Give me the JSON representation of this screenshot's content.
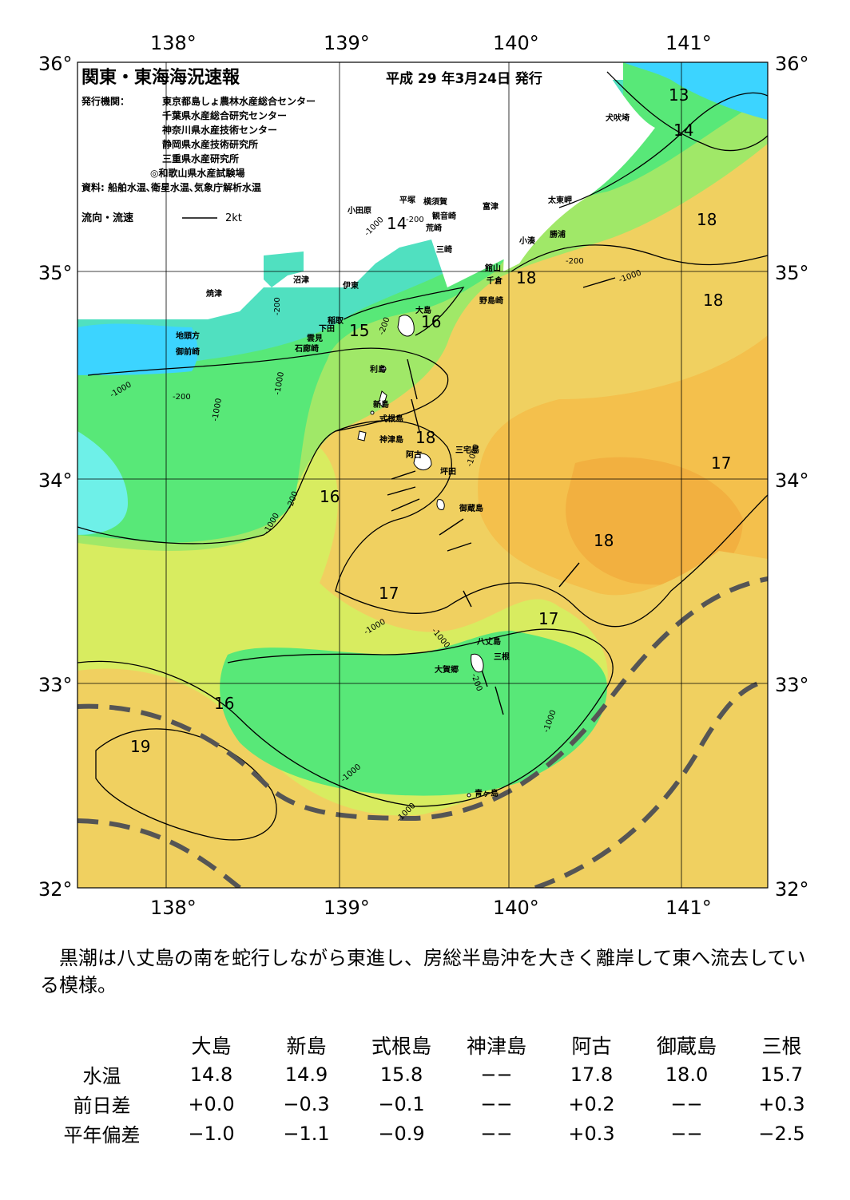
{
  "header": {
    "title": "関東・東海海況速報",
    "date": "平成 29 年3月24日 発行",
    "issuer_label": "発行機関：",
    "issuers": [
      "東京都島しょ農林水産総合センター",
      "千葉県水産総合研究センター",
      "神奈川県水産技術センター",
      "静岡県水産技術研究所",
      "三重県水産研究所",
      "◎和歌山県水産試験場"
    ],
    "sources": "資料: 船舶水温､衛星水温､気象庁解析水温",
    "legend_label": "流向・流速",
    "legend_speed": "2kt"
  },
  "axes": {
    "lon_labels": [
      "138°",
      "139°",
      "140°",
      "141°"
    ],
    "lat_labels": [
      "36°",
      "35°",
      "34°",
      "33°",
      "32°"
    ]
  },
  "map": {
    "isotherm_labels": [
      "13",
      "14",
      "14",
      "18",
      "18",
      "18",
      "15",
      "16",
      "18",
      "16",
      "17",
      "18",
      "17",
      "17",
      "16",
      "19"
    ],
    "depth_labels": [
      "-1000",
      "-200",
      "-1000",
      "-200",
      "-1000",
      "-200",
      "-1000",
      "-200",
      "-200",
      "-1000",
      "-1000",
      "-1000",
      "-1000",
      "-1000",
      "-200",
      "-1000",
      "-1000",
      "-1000",
      "-200"
    ],
    "place_names": [
      "犬吠埼",
      "太東岬",
      "勝浦",
      "小湊",
      "富津",
      "平塚",
      "横須賀",
      "観音崎",
      "荒崎",
      "三崎",
      "小田原",
      "館山",
      "千倉",
      "野島崎",
      "沼津",
      "伊東",
      "焼津",
      "稲取",
      "下田",
      "雲見",
      "石廊崎",
      "地頭方",
      "御前崎",
      "大島",
      "利島",
      "新島",
      "式根島",
      "神津島",
      "阿古",
      "三宅島",
      "坪田",
      "御蔵島",
      "八丈島",
      "三根",
      "大賀郷",
      "青ヶ島"
    ]
  },
  "description": "　黒潮は八丈島の南を蛇行しながら東進し、房総半島沖を大きく離岸して東へ流去している模様。",
  "table": {
    "columns": [
      "大島",
      "新島",
      "式根島",
      "神津島",
      "阿古",
      "御蔵島",
      "三根"
    ],
    "rows": [
      {
        "label": "水温",
        "values": [
          "14.8",
          "14.9",
          "15.8",
          "−−",
          "17.8",
          "18.0",
          "15.7"
        ]
      },
      {
        "label": "前日差",
        "values": [
          "+0.0",
          "−0.3",
          "−0.1",
          "−−",
          "+0.2",
          "−−",
          "+0.3"
        ]
      },
      {
        "label": "平年偏差",
        "values": [
          "−1.0",
          "−1.1",
          "−0.9",
          "−−",
          "+0.3",
          "−−",
          "−2.5"
        ]
      }
    ]
  },
  "colors": {
    "coast_water": "#3cd4ff",
    "cool_band": "#50e0c0",
    "mid_green": "#58e878",
    "warm_green": "#a0e868",
    "yellow_green": "#d8ec60",
    "warm_yellow": "#f0d060",
    "kuroshio_orange": "#f4c04c",
    "hot_orange": "#f2a030",
    "land": "#ffffff",
    "kuroshio_line": "#555555"
  }
}
